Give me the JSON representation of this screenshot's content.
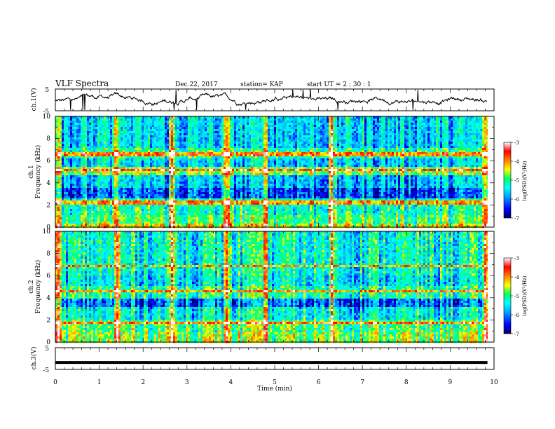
{
  "header": {
    "title": "VLF Spectra",
    "date": "Dec.22, 2017",
    "station": "station= KAP",
    "start_time": "start  UT =  2 : 30 : 1"
  },
  "chart_data": [
    {
      "type": "line",
      "panel": "ch1-waveform",
      "ylabel": "ch.1(V)",
      "ylim": [
        -5,
        5
      ],
      "yticks": [
        "5",
        "-5"
      ],
      "xlim": [
        0,
        10
      ],
      "x_extent_min": [
        0,
        9.85
      ],
      "color": "#000000",
      "description_values": "noisy signal centered near 0 V, range about -5 to 5 V"
    },
    {
      "type": "heatmap",
      "panel": "ch1-spectrogram",
      "ylabel": "ch.1\nFrequency (kHz)",
      "ylabel_line1": "ch.1",
      "ylabel_line2": "Frequency (kHz)",
      "ylim": [
        0,
        10
      ],
      "yticks": [
        "0",
        "2",
        "4",
        "6",
        "8",
        "10"
      ],
      "xlim": [
        0,
        10
      ],
      "x_extent_min": [
        0,
        9.85
      ],
      "colorbar": {
        "label": "log(PSD)(V²/Hz)",
        "range": [
          -7,
          -3
        ],
        "ticks": [
          "-3",
          "-4",
          "-5",
          "-6",
          "-7"
        ],
        "colors": [
          "#000066",
          "#0000ff",
          "#00a0ff",
          "#00ffff",
          "#00ff66",
          "#ffff00",
          "#ff8000",
          "#ff0000",
          "#ffffff"
        ]
      },
      "bands_khz": [
        {
          "f": [
            0,
            0.4
          ],
          "level": -4.5
        },
        {
          "f": [
            0.4,
            1.0
          ],
          "level": -5.0
        },
        {
          "f": [
            1.0,
            2.6
          ],
          "level": -5.3
        },
        {
          "f": [
            2.6,
            3.6
          ],
          "level": -6.3
        },
        {
          "f": [
            3.6,
            4.6
          ],
          "level": -5.8
        },
        {
          "f": [
            4.6,
            5.4
          ],
          "level": -4.8
        },
        {
          "f": [
            5.4,
            6.2
          ],
          "level": -5.7
        },
        {
          "f": [
            6.2,
            7.2
          ],
          "level": -5.2
        },
        {
          "f": [
            7.2,
            10
          ],
          "level": -5.7
        }
      ],
      "strong_tone_khz": [
        2.2,
        5.2,
        6.6
      ],
      "broadband_events_min": [
        0.05,
        1.4,
        2.65,
        3.9,
        4.75,
        6.3,
        9.8
      ]
    },
    {
      "type": "heatmap",
      "panel": "ch2-spectrogram",
      "ylabel_line1": "ch.2",
      "ylabel_line2": "Frequency (kHz)",
      "ylim": [
        0,
        10
      ],
      "yticks": [
        "0",
        "2",
        "4",
        "6",
        "8",
        "10"
      ],
      "xlim": [
        0,
        10
      ],
      "x_extent_min": [
        0,
        9.85
      ],
      "colorbar": {
        "label": "log(PSD)(V²/Hz)",
        "range": [
          -7,
          -3
        ],
        "ticks": [
          "-3",
          "-4",
          "-5",
          "-6",
          "-7"
        ]
      },
      "bands_khz": [
        {
          "f": [
            0,
            0.8
          ],
          "level": -4.8
        },
        {
          "f": [
            0.8,
            2.0
          ],
          "level": -5.0
        },
        {
          "f": [
            2.0,
            3.2
          ],
          "level": -5.5
        },
        {
          "f": [
            3.2,
            4.0
          ],
          "level": -6.2
        },
        {
          "f": [
            4.0,
            5.0
          ],
          "level": -5.2
        },
        {
          "f": [
            5.0,
            6.0
          ],
          "level": -5.6
        },
        {
          "f": [
            6.0,
            10
          ],
          "level": -5.4
        }
      ],
      "strong_tone_khz": [
        1.8,
        4.6,
        6.8
      ],
      "broadband_events_min": [
        0.05,
        1.4,
        2.65,
        3.9,
        4.75,
        6.3,
        9.8
      ]
    },
    {
      "type": "line",
      "panel": "ch3-waveform",
      "ylabel": "ch.3(V)",
      "ylim": [
        -5,
        5
      ],
      "yticks": [
        "5",
        "-5"
      ],
      "xlim": [
        0,
        10
      ],
      "xticks": [
        "0",
        "1",
        "2",
        "3",
        "4",
        "5",
        "6",
        "7",
        "8",
        "9",
        "10"
      ],
      "xlabel": "Time  (min)",
      "x_extent_min": [
        0,
        9.85
      ],
      "constant_value_v": -1.8,
      "color": "#000000"
    }
  ]
}
